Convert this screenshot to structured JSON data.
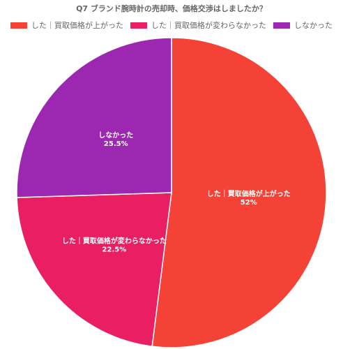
{
  "chart_data": {
    "type": "pie",
    "title": "Q7 ブランド腕時計の売却時、価格交渉はしましたか？",
    "legend_position": "top",
    "slices": [
      {
        "label": "した｜買取価格が上がった",
        "value": 52,
        "value_label": "52%",
        "color": "#f44336"
      },
      {
        "label": "した｜買取価格が変わらなかった",
        "value": 22.5,
        "value_label": "22.5%",
        "color": "#e91e63"
      },
      {
        "label": "しなかった",
        "value": 25.5,
        "value_label": "25.5%",
        "color": "#9c27b0"
      }
    ]
  }
}
